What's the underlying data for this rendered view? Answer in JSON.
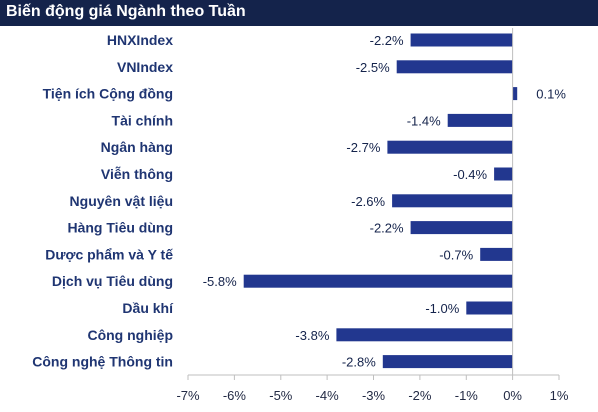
{
  "header": {
    "title": "Biến động giá Ngành theo Tuần"
  },
  "colors": {
    "title_bg": "#14234b",
    "title_text": "#ffffff",
    "bar": "#22378f",
    "category_text": "#1f3572",
    "value_text": "#14234b",
    "axis": "#bfbfbf",
    "tick_text": "#222a44"
  },
  "chart_data": {
    "type": "bar",
    "orientation": "horizontal",
    "title": "Biến động giá Ngành theo Tuần",
    "categories": [
      "HNXIndex",
      "VNIndex",
      "Tiện ích Cộng đồng",
      "Tài chính",
      "Ngân hàng",
      "Viễn thông",
      "Nguyên vật liệu",
      "Hàng Tiêu dùng",
      "Dược phẩm và Y tế",
      "Dịch vụ Tiêu dùng",
      "Dầu khí",
      "Công nghiệp",
      "Công nghệ Thông tin"
    ],
    "values": [
      -2.2,
      -2.5,
      0.1,
      -1.4,
      -2.7,
      -0.4,
      -2.6,
      -2.2,
      -0.7,
      -5.8,
      -1.0,
      -3.8,
      -2.8
    ],
    "data_labels": [
      "-2.2%",
      "-2.5%",
      "0.1%",
      "-1.4%",
      "-2.7%",
      "-0.4%",
      "-2.6%",
      "-2.2%",
      "-0.7%",
      "-5.8%",
      "-1.0%",
      "-3.8%",
      "-2.8%"
    ],
    "xlim": [
      -7,
      1
    ],
    "xticks": [
      -7,
      -6,
      -5,
      -4,
      -3,
      -2,
      -1,
      0,
      1
    ],
    "xtick_labels": [
      "-7%",
      "-6%",
      "-5%",
      "-4%",
      "-3%",
      "-2%",
      "-1%",
      "0%",
      "1%"
    ],
    "xlabel": "",
    "ylabel": "",
    "grid": false,
    "legend": "none"
  }
}
